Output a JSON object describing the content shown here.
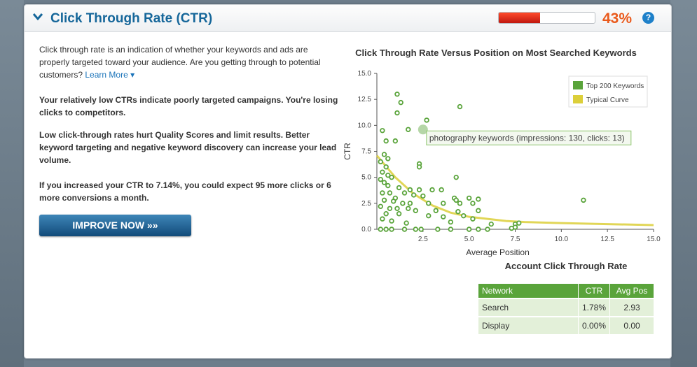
{
  "header": {
    "title": "Click Through Rate (CTR)",
    "score_percent": "43%",
    "score_fraction": 0.43,
    "help_label": "?"
  },
  "intro": {
    "text": "Click through rate is an indication of whether your keywords and ads are properly targeted toward your audience. Are you getting through to potential customers?",
    "link": "Learn More"
  },
  "messages": [
    "Your relatively low CTRs indicate poorly targeted campaigns. You're losing clicks to competitors.",
    "Low click-through rates hurt Quality Scores and limit results. Better keyword targeting and negative keyword discovery can increase your lead volume.",
    "If you increased your CTR to 7.14%, you could expect 95 more clicks or 6 more conversions a month."
  ],
  "button_label": "IMPROVE NOW",
  "chart_data": {
    "type": "scatter",
    "title": "Click Through Rate Versus Position on Most Searched Keywords",
    "xlabel": "Average Position",
    "ylabel": "CTR",
    "xlim": [
      0,
      15
    ],
    "ylim": [
      0,
      15
    ],
    "xticks": [
      "2.5",
      "5.0",
      "7.5",
      "10.0",
      "12.5",
      "15.0"
    ],
    "yticks": [
      "0.0",
      "2.5",
      "5.0",
      "7.5",
      "10.0",
      "12.5",
      "15.0"
    ],
    "legend": [
      "Top 200 Keywords",
      "Typical Curve"
    ],
    "tooltip": "photography keywords (impressions: 130, clicks: 13)",
    "series": [
      {
        "name": "Top 200 Keywords",
        "points": [
          [
            1.1,
            13
          ],
          [
            1.3,
            12.2
          ],
          [
            2.7,
            10.5
          ],
          [
            4.5,
            11.8
          ],
          [
            0.3,
            9.5
          ],
          [
            0.5,
            8.5
          ],
          [
            1.0,
            8.5
          ],
          [
            0.4,
            7.2
          ],
          [
            0.6,
            6.8
          ],
          [
            0.2,
            6.5
          ],
          [
            2.3,
            6.3
          ],
          [
            2.3,
            6.0
          ],
          [
            0.5,
            6
          ],
          [
            0.3,
            5.5
          ],
          [
            0.6,
            5.2
          ],
          [
            0.8,
            5
          ],
          [
            0.2,
            4.8
          ],
          [
            0.4,
            4.5
          ],
          [
            4.3,
            5.0
          ],
          [
            0.6,
            4.2
          ],
          [
            1.2,
            4.0
          ],
          [
            1.8,
            3.8
          ],
          [
            2.3,
            3.8
          ],
          [
            3.0,
            3.8
          ],
          [
            3.5,
            3.8
          ],
          [
            0.3,
            3.5
          ],
          [
            0.7,
            3.5
          ],
          [
            1.5,
            3.5
          ],
          [
            2.0,
            3.3
          ],
          [
            2.5,
            3.2
          ],
          [
            4.2,
            3.0
          ],
          [
            4.3,
            2.8
          ],
          [
            5.0,
            3.0
          ],
          [
            5.5,
            2.9
          ],
          [
            1.0,
            3.0
          ],
          [
            0.4,
            2.8
          ],
          [
            0.9,
            2.7
          ],
          [
            1.4,
            2.5
          ],
          [
            1.8,
            2.5
          ],
          [
            2.8,
            2.5
          ],
          [
            3.6,
            2.5
          ],
          [
            4.5,
            2.5
          ],
          [
            5.2,
            2.5
          ],
          [
            11.2,
            2.8
          ],
          [
            0.2,
            2.2
          ],
          [
            0.7,
            2.0
          ],
          [
            1.1,
            2.0
          ],
          [
            1.7,
            2.0
          ],
          [
            2.1,
            1.8
          ],
          [
            3.2,
            1.8
          ],
          [
            4.4,
            1.7
          ],
          [
            5.5,
            1.8
          ],
          [
            0.5,
            1.5
          ],
          [
            1.2,
            1.5
          ],
          [
            2.8,
            1.3
          ],
          [
            3.6,
            1.2
          ],
          [
            4.7,
            1.3
          ],
          [
            5.2,
            1.0
          ],
          [
            0.3,
            1.0
          ],
          [
            0.8,
            0.8
          ],
          [
            1.6,
            0.6
          ],
          [
            4.0,
            0.7
          ],
          [
            6.2,
            0.5
          ],
          [
            7.5,
            0.5
          ],
          [
            7.7,
            0.6
          ],
          [
            0.2,
            0.0
          ],
          [
            0.5,
            0.0
          ],
          [
            0.8,
            0.0
          ],
          [
            1.5,
            0.0
          ],
          [
            2.1,
            0.0
          ],
          [
            2.4,
            0.0
          ],
          [
            3.3,
            0.0
          ],
          [
            4.0,
            0.0
          ],
          [
            5.0,
            0.0
          ],
          [
            5.5,
            0.0
          ],
          [
            6.0,
            0.0
          ],
          [
            7.3,
            0.1
          ],
          [
            7.5,
            0.2
          ],
          [
            1.7,
            9.6
          ],
          [
            1.1,
            11.2
          ]
        ]
      },
      {
        "name": "Typical Curve",
        "points": [
          [
            0,
            7.1
          ],
          [
            1,
            5.0
          ],
          [
            2,
            3.4
          ],
          [
            3,
            2.3
          ],
          [
            4,
            1.6
          ],
          [
            5,
            1.2
          ],
          [
            6,
            1.0
          ],
          [
            7,
            0.8
          ],
          [
            8,
            0.7
          ],
          [
            10,
            0.6
          ],
          [
            12.5,
            0.5
          ],
          [
            15,
            0.4
          ]
        ]
      }
    ]
  },
  "account_table": {
    "title": "Account Click Through Rate",
    "columns": [
      "Network",
      "CTR",
      "Avg Pos"
    ],
    "rows": [
      [
        "Search",
        "1.78%",
        "2.93"
      ],
      [
        "Display",
        "0.00%",
        "0.00"
      ]
    ]
  },
  "colors": {
    "title": "#16679a",
    "score": "#ea5a1c",
    "green": "#5aa43b",
    "curve": "#dccf3a"
  }
}
